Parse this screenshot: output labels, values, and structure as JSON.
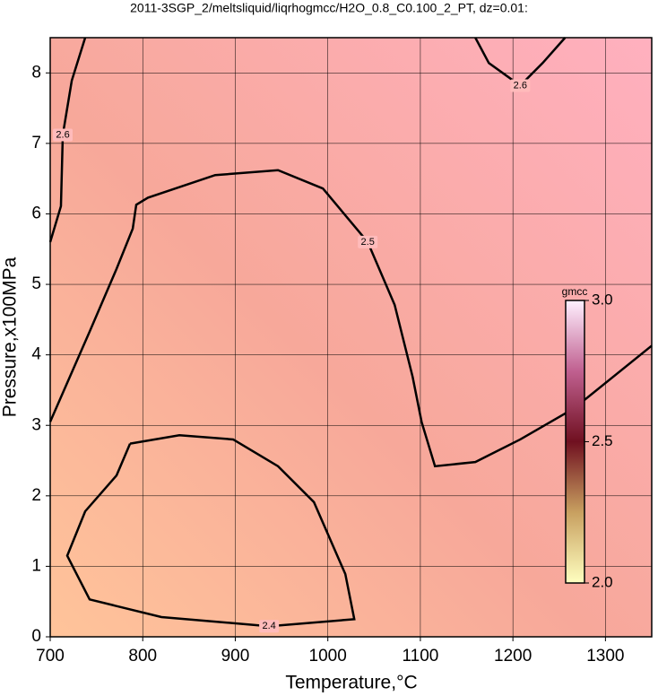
{
  "chart_data": {
    "type": "contour",
    "title": "2011-3SGP_2/meltsliquid/liqrhogmcc/H2O_0.8_C0.100_2_PT, dz=0.01:",
    "x_label": "Temperature,°C",
    "y_label": "Pressure,x100MPa",
    "xlim": [
      700,
      1350
    ],
    "ylim": [
      0,
      8.5
    ],
    "xticks": [
      700,
      800,
      900,
      1000,
      1100,
      1200,
      1300
    ],
    "yticks": [
      0,
      1,
      2,
      3,
      4,
      5,
      6,
      7,
      8
    ],
    "grid": true,
    "colorbar": {
      "label": "gmcc",
      "clim": [
        2,
        3
      ],
      "ticks": [
        {
          "value": 2,
          "label": "2.0"
        },
        {
          "value": 2.5,
          "label": "2.5"
        },
        {
          "value": 3,
          "label": "3.0"
        }
      ]
    },
    "contours": [
      {
        "level": 2.5,
        "x": [
          700,
          742.6,
          771.7,
          789.2,
          793,
          805.6,
          878.3,
          946.2,
          994.7,
          1043.1,
          1072.2,
          1091.6,
          1101.3,
          1115.8,
          1159.4,
          1207.9,
          1266,
          1350
        ],
        "y": [
          3.05,
          4.33,
          5.22,
          5.79,
          6.13,
          6.23,
          6.55,
          6.62,
          6.36,
          5.6,
          4.71,
          3.69,
          3.05,
          2.42,
          2.48,
          2.8,
          3.24,
          4.13
        ]
      },
      {
        "level": 2.4,
        "x": [
          786.3,
          839.6,
          897.7,
          946.2,
          985,
          1018.9,
          1028.6,
          936.5,
          820.2,
          742.6,
          718.4,
          737.8,
          771.7,
          786.3
        ],
        "y": [
          2.74,
          2.86,
          2.8,
          2.42,
          1.91,
          0.89,
          0.25,
          0.15,
          0.28,
          0.53,
          1.15,
          1.78,
          2.29,
          2.74
        ]
      },
      {
        "level": 2.6,
        "x": [
          737.8,
          723.3,
          713.6,
          711.6,
          700
        ],
        "y": [
          8.5,
          7.89,
          7.12,
          6.11,
          5.6
        ]
      },
      {
        "level": 2.6,
        "x": [
          1159.4,
          1174,
          1207.9,
          1232.1,
          1256.4
        ],
        "y": [
          8.5,
          8.14,
          7.82,
          8.14,
          8.5
        ]
      }
    ]
  }
}
